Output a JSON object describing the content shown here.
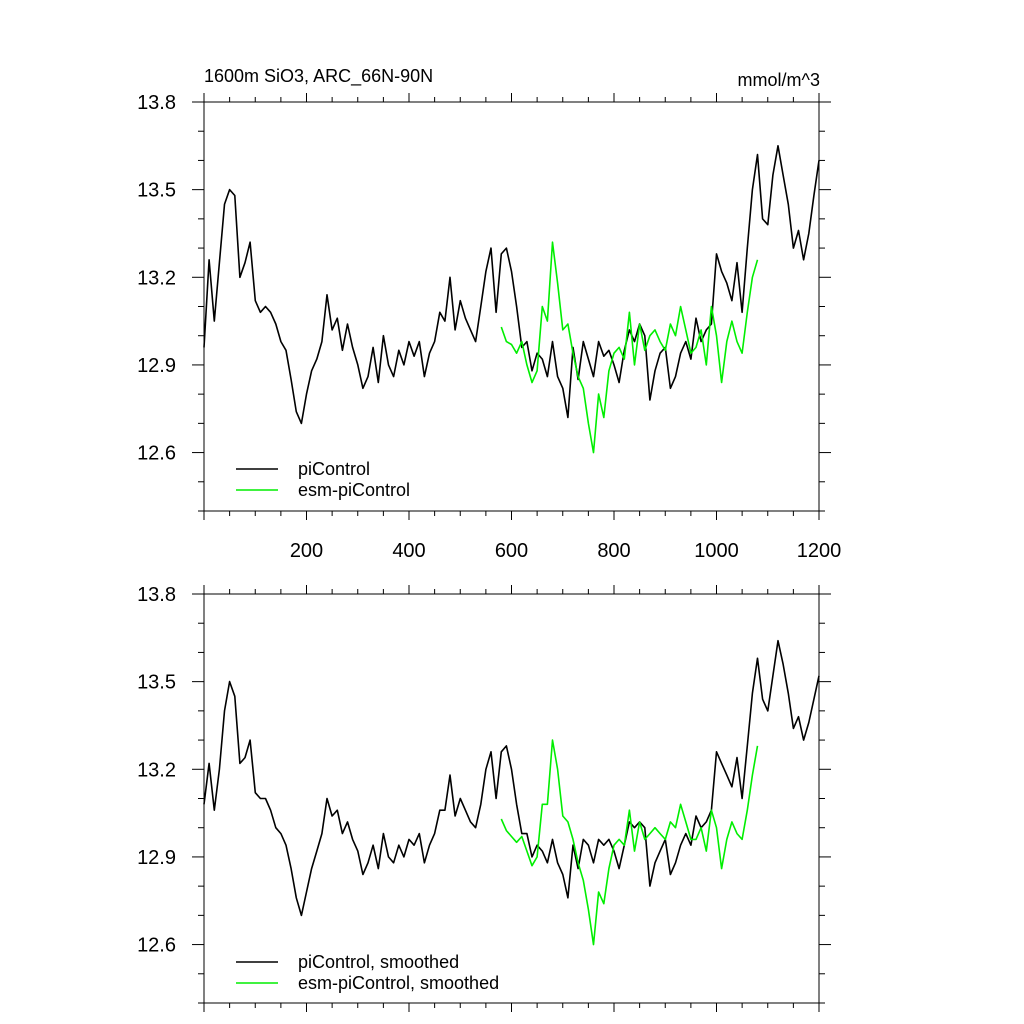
{
  "chart_data": [
    {
      "type": "line",
      "title": "1600m SiO3, ARC_66N-90N",
      "units": "mmol/m^3",
      "xlim": [
        0,
        1200
      ],
      "ylim": [
        12.4,
        13.8
      ],
      "yticks": [
        "13.8",
        "13.5",
        "13.2",
        "12.9",
        "12.6"
      ],
      "xticks": [
        "200",
        "400",
        "600",
        "800",
        "1000",
        "1200"
      ],
      "legend_position": "bottom-left",
      "series": [
        {
          "name": "piControl",
          "color": "#000000",
          "x": [
            0,
            10,
            20,
            30,
            40,
            50,
            60,
            70,
            80,
            90,
            100,
            110,
            120,
            130,
            140,
            150,
            160,
            170,
            180,
            190,
            200,
            210,
            220,
            230,
            240,
            250,
            260,
            270,
            280,
            290,
            300,
            310,
            320,
            330,
            340,
            350,
            360,
            370,
            380,
            390,
            400,
            410,
            420,
            430,
            440,
            450,
            460,
            470,
            480,
            490,
            500,
            510,
            520,
            530,
            540,
            550,
            560,
            570,
            580,
            590,
            600,
            610,
            620,
            630,
            640,
            650,
            660,
            670,
            680,
            690,
            700,
            710,
            720,
            730,
            740,
            750,
            760,
            770,
            780,
            790,
            800,
            810,
            820,
            830,
            840,
            850,
            860,
            870,
            880,
            890,
            900,
            910,
            920,
            930,
            940,
            950,
            960,
            970,
            980,
            990,
            1000,
            1010,
            1020,
            1030,
            1040,
            1050,
            1060,
            1070,
            1080,
            1090,
            1100,
            1110,
            1120,
            1130,
            1140,
            1150,
            1160,
            1170,
            1180,
            1190,
            1200
          ],
          "values": [
            12.96,
            13.26,
            13.05,
            13.25,
            13.45,
            13.5,
            13.48,
            13.2,
            13.25,
            13.32,
            13.12,
            13.08,
            13.1,
            13.08,
            13.04,
            12.98,
            12.95,
            12.85,
            12.74,
            12.7,
            12.8,
            12.88,
            12.92,
            12.98,
            13.14,
            13.02,
            13.06,
            12.95,
            13.04,
            12.96,
            12.9,
            12.82,
            12.86,
            12.96,
            12.84,
            13.0,
            12.9,
            12.86,
            12.95,
            12.9,
            12.98,
            12.93,
            12.98,
            12.86,
            12.94,
            12.98,
            13.08,
            13.05,
            13.2,
            13.02,
            13.12,
            13.06,
            13.02,
            12.98,
            13.1,
            13.22,
            13.3,
            13.08,
            13.28,
            13.3,
            13.22,
            13.1,
            12.96,
            12.98,
            12.88,
            12.94,
            12.92,
            12.86,
            12.98,
            12.86,
            12.82,
            12.72,
            12.96,
            12.85,
            12.98,
            12.92,
            12.86,
            12.98,
            12.93,
            12.95,
            12.9,
            12.84,
            12.95,
            13.02,
            12.98,
            13.04,
            13.0,
            12.78,
            12.88,
            12.94,
            12.96,
            12.82,
            12.86,
            12.94,
            12.98,
            12.92,
            13.06,
            12.98,
            13.02,
            13.04,
            13.28,
            13.22,
            13.18,
            13.12,
            13.25,
            13.08,
            13.3,
            13.5,
            13.62,
            13.4,
            13.38,
            13.55,
            13.65,
            13.55,
            13.45,
            13.3,
            13.36,
            13.26,
            13.35,
            13.48,
            13.6
          ]
        },
        {
          "name": "esm-piControl",
          "color": "#00ee00",
          "x": [
            580,
            590,
            600,
            610,
            620,
            630,
            640,
            650,
            660,
            670,
            680,
            690,
            700,
            710,
            720,
            730,
            740,
            750,
            760,
            770,
            780,
            790,
            800,
            810,
            820,
            830,
            840,
            850,
            860,
            870,
            880,
            890,
            900,
            910,
            920,
            930,
            940,
            950,
            960,
            970,
            980,
            990,
            1000,
            1010,
            1020,
            1030,
            1040,
            1050,
            1060,
            1070,
            1080
          ],
          "values": [
            13.03,
            12.98,
            12.97,
            12.94,
            12.98,
            12.9,
            12.84,
            12.88,
            13.1,
            13.05,
            13.32,
            13.18,
            13.02,
            13.04,
            12.94,
            12.86,
            12.82,
            12.7,
            12.6,
            12.8,
            12.72,
            12.88,
            12.94,
            12.96,
            12.92,
            13.08,
            12.9,
            13.04,
            12.95,
            13.0,
            13.02,
            12.98,
            12.95,
            13.04,
            13.0,
            13.1,
            13.02,
            12.94,
            12.96,
            13.02,
            12.9,
            13.1,
            13.0,
            12.84,
            12.98,
            13.05,
            12.98,
            12.94,
            13.08,
            13.2,
            13.26
          ]
        }
      ]
    },
    {
      "type": "line",
      "title": "",
      "xlim": [
        0,
        1200
      ],
      "ylim": [
        12.4,
        13.8
      ],
      "yticks": [
        "13.8",
        "13.5",
        "13.2",
        "12.9",
        "12.6"
      ],
      "legend_position": "bottom-left",
      "series": [
        {
          "name": "piControl, smoothed",
          "color": "#000000",
          "x": [
            0,
            10,
            20,
            30,
            40,
            50,
            60,
            70,
            80,
            90,
            100,
            110,
            120,
            130,
            140,
            150,
            160,
            170,
            180,
            190,
            200,
            210,
            220,
            230,
            240,
            250,
            260,
            270,
            280,
            290,
            300,
            310,
            320,
            330,
            340,
            350,
            360,
            370,
            380,
            390,
            400,
            410,
            420,
            430,
            440,
            450,
            460,
            470,
            480,
            490,
            500,
            510,
            520,
            530,
            540,
            550,
            560,
            570,
            580,
            590,
            600,
            610,
            620,
            630,
            640,
            650,
            660,
            670,
            680,
            690,
            700,
            710,
            720,
            730,
            740,
            750,
            760,
            770,
            780,
            790,
            800,
            810,
            820,
            830,
            840,
            850,
            860,
            870,
            880,
            890,
            900,
            910,
            920,
            930,
            940,
            950,
            960,
            970,
            980,
            990,
            1000,
            1010,
            1020,
            1030,
            1040,
            1050,
            1060,
            1070,
            1080,
            1090,
            1100,
            1110,
            1120,
            1130,
            1140,
            1150,
            1160,
            1170,
            1180,
            1190,
            1200
          ],
          "values": [
            13.08,
            13.22,
            13.06,
            13.2,
            13.4,
            13.5,
            13.45,
            13.22,
            13.24,
            13.3,
            13.12,
            13.1,
            13.1,
            13.06,
            13.0,
            12.98,
            12.94,
            12.86,
            12.76,
            12.7,
            12.78,
            12.86,
            12.92,
            12.98,
            13.1,
            13.04,
            13.06,
            12.98,
            13.02,
            12.96,
            12.92,
            12.84,
            12.88,
            12.94,
            12.86,
            12.98,
            12.9,
            12.88,
            12.94,
            12.9,
            12.96,
            12.94,
            12.98,
            12.88,
            12.94,
            12.98,
            13.06,
            13.06,
            13.18,
            13.04,
            13.1,
            13.06,
            13.02,
            13.0,
            13.08,
            13.2,
            13.26,
            13.1,
            13.26,
            13.28,
            13.2,
            13.08,
            12.98,
            12.98,
            12.9,
            12.94,
            12.92,
            12.88,
            12.96,
            12.88,
            12.84,
            12.76,
            12.94,
            12.86,
            12.96,
            12.94,
            12.88,
            12.96,
            12.94,
            12.96,
            12.92,
            12.86,
            12.94,
            13.02,
            13.0,
            13.02,
            13.0,
            12.8,
            12.88,
            12.92,
            12.96,
            12.84,
            12.88,
            12.94,
            12.98,
            12.94,
            13.04,
            13.0,
            13.02,
            13.06,
            13.26,
            13.22,
            13.18,
            13.14,
            13.24,
            13.1,
            13.28,
            13.46,
            13.58,
            13.44,
            13.4,
            13.52,
            13.64,
            13.56,
            13.46,
            13.34,
            13.38,
            13.3,
            13.36,
            13.44,
            13.52
          ]
        },
        {
          "name": "esm-piControl, smoothed",
          "color": "#00ee00",
          "x": [
            580,
            590,
            600,
            610,
            620,
            630,
            640,
            650,
            660,
            670,
            680,
            690,
            700,
            710,
            720,
            730,
            740,
            750,
            760,
            770,
            780,
            790,
            800,
            810,
            820,
            830,
            840,
            850,
            860,
            870,
            880,
            890,
            900,
            910,
            920,
            930,
            940,
            950,
            960,
            970,
            980,
            990,
            1000,
            1010,
            1020,
            1030,
            1040,
            1050,
            1060,
            1070,
            1080
          ],
          "values": [
            13.03,
            12.99,
            12.97,
            12.95,
            12.97,
            12.92,
            12.87,
            12.9,
            13.08,
            13.08,
            13.3,
            13.2,
            13.04,
            13.02,
            12.96,
            12.88,
            12.82,
            12.72,
            12.6,
            12.78,
            12.74,
            12.86,
            12.94,
            12.96,
            12.94,
            13.06,
            12.92,
            13.02,
            12.96,
            12.98,
            13.0,
            12.98,
            12.96,
            13.02,
            13.0,
            13.08,
            13.02,
            12.96,
            12.96,
            13.0,
            12.92,
            13.06,
            13.0,
            12.86,
            12.96,
            13.02,
            12.98,
            12.96,
            13.06,
            13.18,
            13.28
          ]
        }
      ]
    }
  ]
}
